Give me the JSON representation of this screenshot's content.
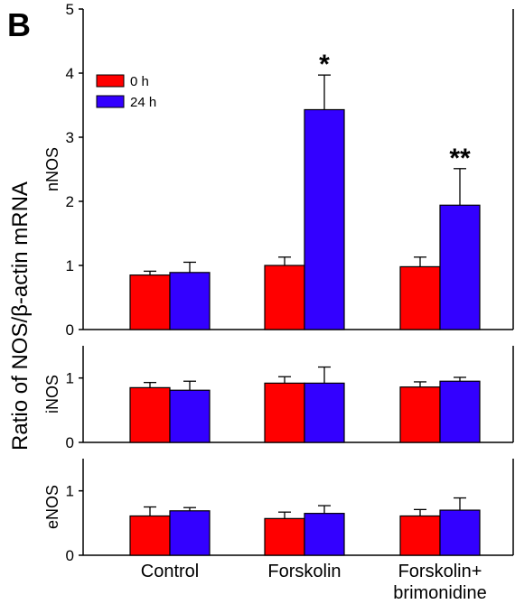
{
  "figure": {
    "panel_letter": "B",
    "ylabel": "Ratio of NOS/β-actin mRNA",
    "categories": [
      "Control",
      "Forskolin",
      "Forskolin+\nbrimonidine"
    ]
  },
  "colors": {
    "0 h": "#ff0000",
    "24 h": "#3300ff"
  },
  "chart_data": [
    {
      "type": "bar",
      "label": "nNOS",
      "categories": [
        "Control",
        "Forskolin",
        "Forskolin+\nbrimonidine"
      ],
      "series": [
        {
          "name": "0 h",
          "values": [
            0.85,
            1.0,
            0.98
          ],
          "errors": [
            0.06,
            0.13,
            0.15
          ]
        },
        {
          "name": "24 h",
          "values": [
            0.89,
            3.43,
            1.94
          ],
          "errors": [
            0.16,
            0.54,
            0.57
          ]
        }
      ],
      "ylim": [
        0,
        5
      ],
      "yticks": [
        0,
        1,
        2,
        3,
        4,
        5
      ],
      "annotations": [
        {
          "text": "*",
          "category": "Forskolin",
          "series": "24 h"
        },
        {
          "text": "**",
          "category": "Forskolin+\nbrimonidine",
          "series": "24 h"
        }
      ],
      "legend": {
        "position": "top-left",
        "entries": [
          "0 h",
          "24 h"
        ]
      }
    },
    {
      "type": "bar",
      "label": "iNOS",
      "categories": [
        "Control",
        "Forskolin",
        "Forskolin+\nbrimonidine"
      ],
      "series": [
        {
          "name": "0 h",
          "values": [
            0.85,
            0.92,
            0.86
          ],
          "errors": [
            0.08,
            0.1,
            0.08
          ]
        },
        {
          "name": "24 h",
          "values": [
            0.81,
            0.92,
            0.95
          ],
          "errors": [
            0.14,
            0.25,
            0.06
          ]
        }
      ],
      "ylim": [
        0,
        1.5
      ],
      "yticks": [
        0,
        1
      ]
    },
    {
      "type": "bar",
      "label": "eNOS",
      "categories": [
        "Control",
        "Forskolin",
        "Forskolin+\nbrimonidine"
      ],
      "series": [
        {
          "name": "0 h",
          "values": [
            0.61,
            0.57,
            0.61
          ],
          "errors": [
            0.14,
            0.1,
            0.1
          ]
        },
        {
          "name": "24 h",
          "values": [
            0.69,
            0.65,
            0.7
          ],
          "errors": [
            0.05,
            0.12,
            0.19
          ]
        }
      ],
      "ylim": [
        0,
        1.5
      ],
      "yticks": [
        0,
        1
      ]
    }
  ]
}
